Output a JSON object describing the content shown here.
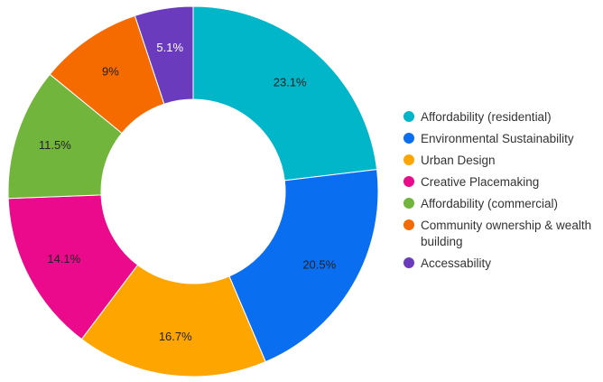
{
  "chart_data": {
    "type": "pie",
    "style": "donut",
    "title": "",
    "legend_position": "right",
    "slices": [
      {
        "label": "Affordability (residential)",
        "value": 23.1,
        "value_label": "23.1%",
        "color": "#00b6c8"
      },
      {
        "label": "Environmental Sustainability",
        "value": 20.5,
        "value_label": "20.5%",
        "color": "#0a6ef0"
      },
      {
        "label": "Urban Design",
        "value": 16.7,
        "value_label": "16.7%",
        "color": "#ffa500"
      },
      {
        "label": "Creative Placemaking",
        "value": 14.1,
        "value_label": "14.1%",
        "color": "#ec0a8c"
      },
      {
        "label": "Affordability (commercial)",
        "value": 11.5,
        "value_label": "11.5%",
        "color": "#72b53d"
      },
      {
        "label": "Community ownership & wealth building",
        "value": 9,
        "value_label": "9%",
        "color": "#f56b00"
      },
      {
        "label": "Accessability",
        "value": 5.1,
        "value_label": "5.1%",
        "color": "#6a3bbd"
      }
    ]
  }
}
